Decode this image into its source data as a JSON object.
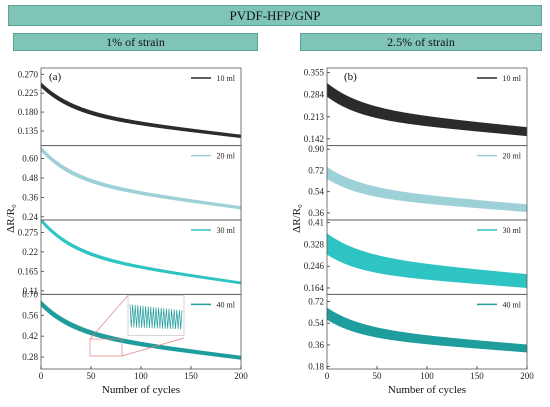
{
  "header": {
    "title": "PVDF-HFP/GNP",
    "left_subtitle": "1% of strain",
    "right_subtitle": "2.5% of strain"
  },
  "chart_data": [
    {
      "type": "line",
      "panel_label": "(a)",
      "xlabel": "Number of cycles",
      "ylabel": "ΔR/R₀",
      "xlim": [
        0,
        200
      ],
      "xticks": [
        0,
        50,
        100,
        150,
        200
      ],
      "subplots": [
        {
          "series": [
            {
              "name": "10 ml",
              "color": "#2b2b2b",
              "start": 0.245,
              "end": 0.122,
              "amp": 0.006
            }
          ],
          "ylim": [
            0.1,
            0.285
          ],
          "yticks": [
            0.135,
            0.18,
            0.225,
            0.27
          ]
        },
        {
          "series": [
            {
              "name": "20 ml",
              "color": "#9ed0d8",
              "start": 0.66,
              "end": 0.295,
              "amp": 0.015
            }
          ],
          "ylim": [
            0.22,
            0.68
          ],
          "yticks": [
            0.24,
            0.36,
            0.48,
            0.6
          ]
        },
        {
          "series": [
            {
              "name": "30 ml",
              "color": "#2ec4c4",
              "start": 0.31,
              "end": 0.132,
              "amp": 0.006
            }
          ],
          "ylim": [
            0.1,
            0.31
          ],
          "yticks": [
            0.11,
            0.165,
            0.22,
            0.275
          ]
        },
        {
          "series": [
            {
              "name": "40 ml",
              "color": "#1f9c9c",
              "start": 0.64,
              "end": 0.275,
              "amp": 0.02
            }
          ],
          "ylim": [
            0.2,
            0.7
          ],
          "yticks": [
            0.28,
            0.42,
            0.56,
            0.7
          ]
        }
      ]
    },
    {
      "type": "line",
      "panel_label": "(b)",
      "xlabel": "Number of cycles",
      "ylabel": "ΔR/R₀",
      "xlim": [
        0,
        200
      ],
      "xticks": [
        0,
        50,
        100,
        150,
        200
      ],
      "subplots": [
        {
          "series": [
            {
              "name": "10 ml",
              "color": "#2b2b2b",
              "start": 0.3,
              "end": 0.165,
              "amp": 0.022
            }
          ],
          "ylim": [
            0.12,
            0.37
          ],
          "yticks": [
            0.142,
            0.213,
            0.284,
            0.355
          ]
        },
        {
          "series": [
            {
              "name": "20 ml",
              "color": "#9ed0d8",
              "start": 0.7,
              "end": 0.4,
              "amp": 0.05
            }
          ],
          "ylim": [
            0.3,
            0.93
          ],
          "yticks": [
            0.36,
            0.54,
            0.72,
            0.9
          ]
        },
        {
          "series": [
            {
              "name": "30 ml",
              "color": "#2ec4c4",
              "start": 0.33,
              "end": 0.19,
              "amp": 0.04
            }
          ],
          "ylim": [
            0.14,
            0.42
          ],
          "yticks": [
            0.164,
            0.246,
            0.328,
            0.41
          ]
        },
        {
          "series": [
            {
              "name": "40 ml",
              "color": "#1f9c9c",
              "start": 0.62,
              "end": 0.33,
              "amp": 0.05
            }
          ],
          "ylim": [
            0.16,
            0.78
          ],
          "yticks": [
            0.18,
            0.36,
            0.54,
            0.72
          ]
        }
      ]
    }
  ]
}
